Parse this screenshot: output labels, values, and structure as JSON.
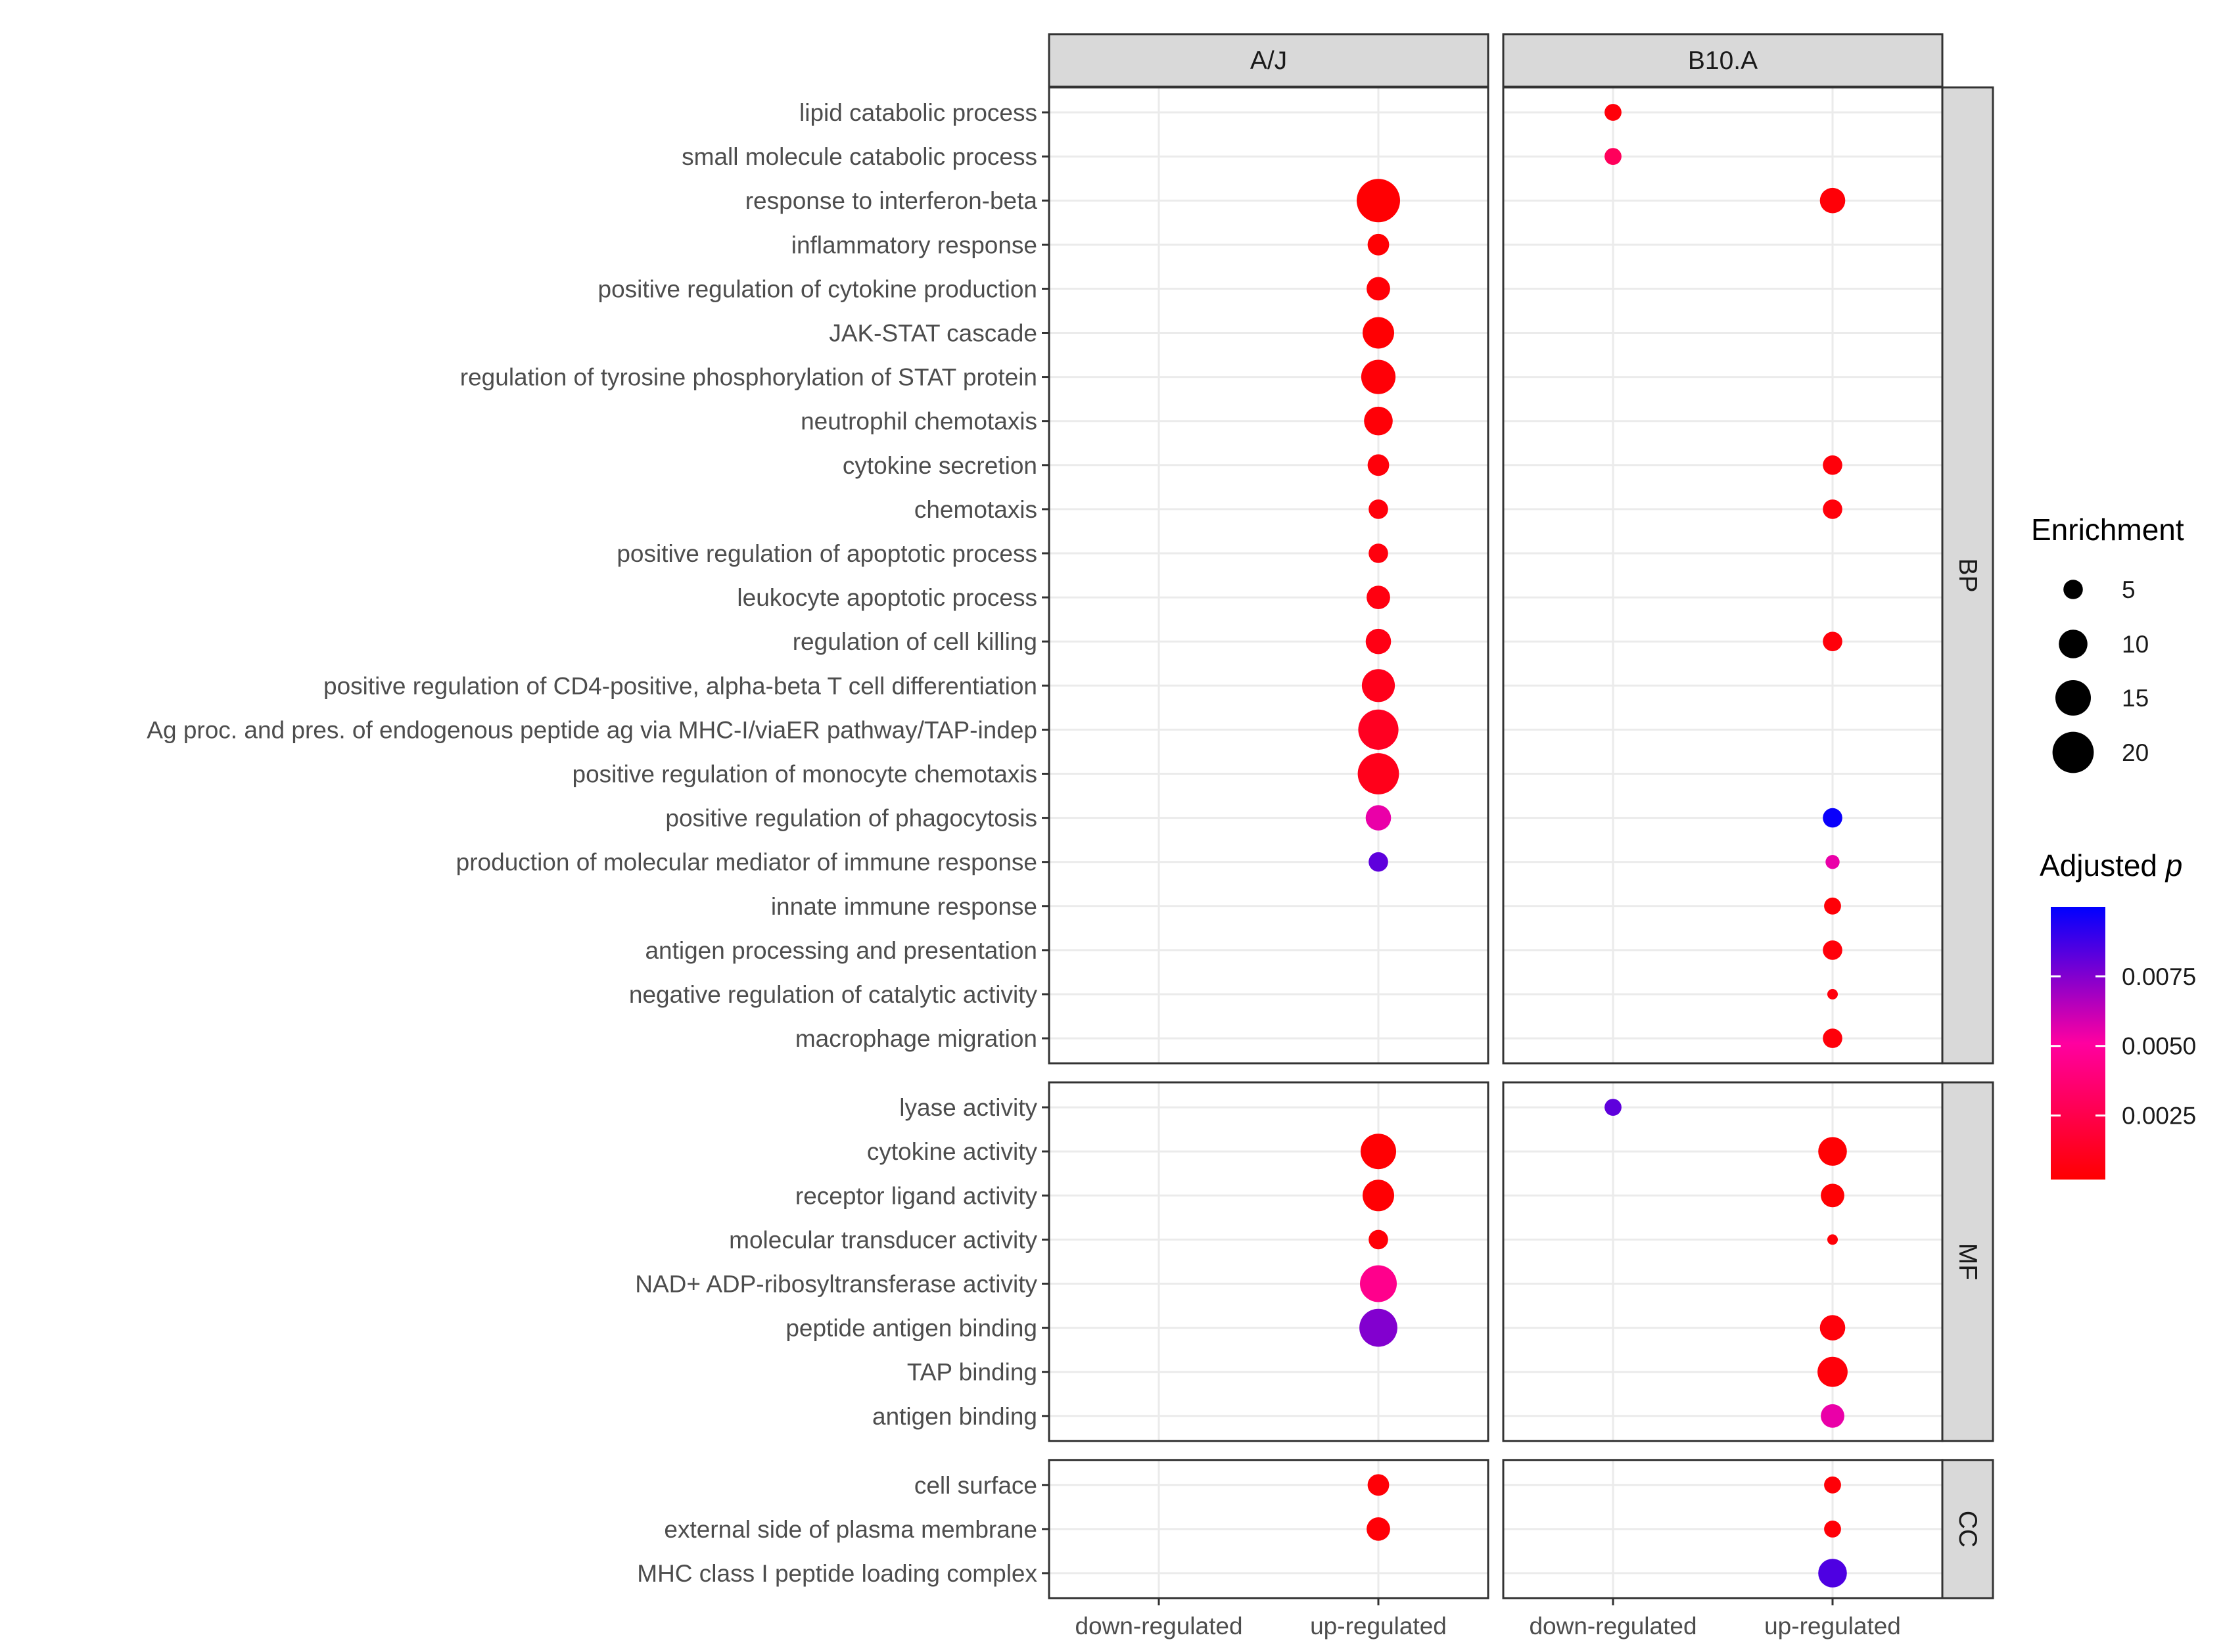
{
  "chart_data": {
    "type": "scatter",
    "columns": [
      "A/J",
      "B10.A"
    ],
    "x_categories": [
      "down-regulated",
      "up-regulated"
    ],
    "panels": [
      {
        "label": "BP",
        "terms": [
          "lipid catabolic process",
          "small molecule catabolic process",
          "response to interferon-beta",
          "inflammatory response",
          "positive regulation of cytokine production",
          "JAK-STAT cascade",
          "regulation of tyrosine phosphorylation of STAT protein",
          "neutrophil chemotaxis",
          "cytokine secretion",
          "chemotaxis",
          "positive regulation of apoptotic process",
          "leukocyte apoptotic process",
          "regulation of cell killing",
          "positive regulation of CD4-positive, alpha-beta T cell differentiation",
          "Ag proc. and pres. of endogenous peptide ag via MHC-I/viaER pathway/TAP-indep",
          "positive regulation of monocyte chemotaxis",
          "positive regulation of phagocytosis",
          "production of molecular mediator of immune response",
          "innate immune response",
          "antigen processing and presentation",
          "negative regulation of catalytic activity",
          "macrophage migration"
        ],
        "points": [
          {
            "column": "B10.A",
            "term": "lipid catabolic process",
            "x": "down-regulated",
            "enrichment": 4,
            "p_adj": 0.0005
          },
          {
            "column": "B10.A",
            "term": "small molecule catabolic process",
            "x": "down-regulated",
            "enrichment": 4,
            "p_adj": 0.003
          },
          {
            "column": "A/J",
            "term": "response to interferon-beta",
            "x": "up-regulated",
            "enrichment": 22,
            "p_adj": 0.0003
          },
          {
            "column": "B10.A",
            "term": "response to interferon-beta",
            "x": "up-regulated",
            "enrichment": 8,
            "p_adj": 0.0004
          },
          {
            "column": "A/J",
            "term": "inflammatory response",
            "x": "up-regulated",
            "enrichment": 6,
            "p_adj": 0.0003
          },
          {
            "column": "A/J",
            "term": "positive regulation of cytokine production",
            "x": "up-regulated",
            "enrichment": 7,
            "p_adj": 0.0004
          },
          {
            "column": "A/J",
            "term": "JAK-STAT cascade",
            "x": "up-regulated",
            "enrichment": 12,
            "p_adj": 0.0003
          },
          {
            "column": "A/J",
            "term": "regulation of tyrosine phosphorylation of STAT protein",
            "x": "up-regulated",
            "enrichment": 14,
            "p_adj": 0.0004
          },
          {
            "column": "A/J",
            "term": "neutrophil chemotaxis",
            "x": "up-regulated",
            "enrichment": 10,
            "p_adj": 0.0004
          },
          {
            "column": "A/J",
            "term": "cytokine secretion",
            "x": "up-regulated",
            "enrichment": 6,
            "p_adj": 0.0005
          },
          {
            "column": "B10.A",
            "term": "cytokine secretion",
            "x": "up-regulated",
            "enrichment": 5,
            "p_adj": 0.0005
          },
          {
            "column": "A/J",
            "term": "chemotaxis",
            "x": "up-regulated",
            "enrichment": 5,
            "p_adj": 0.0005
          },
          {
            "column": "B10.A",
            "term": "chemotaxis",
            "x": "up-regulated",
            "enrichment": 5,
            "p_adj": 0.0005
          },
          {
            "column": "A/J",
            "term": "positive regulation of apoptotic process",
            "x": "up-regulated",
            "enrichment": 5,
            "p_adj": 0.0006
          },
          {
            "column": "A/J",
            "term": "leukocyte apoptotic process",
            "x": "up-regulated",
            "enrichment": 7,
            "p_adj": 0.0007
          },
          {
            "column": "A/J",
            "term": "regulation of cell killing",
            "x": "up-regulated",
            "enrichment": 8,
            "p_adj": 0.0008
          },
          {
            "column": "B10.A",
            "term": "regulation of cell killing",
            "x": "up-regulated",
            "enrichment": 5,
            "p_adj": 0.0005
          },
          {
            "column": "A/J",
            "term": "positive regulation of CD4-positive, alpha-beta T cell differentiation",
            "x": "up-regulated",
            "enrichment": 13,
            "p_adj": 0.001
          },
          {
            "column": "A/J",
            "term": "Ag proc. and pres. of endogenous peptide ag via MHC-I/viaER pathway/TAP-indep",
            "x": "up-regulated",
            "enrichment": 19,
            "p_adj": 0.0012
          },
          {
            "column": "A/J",
            "term": "positive regulation of monocyte chemotaxis",
            "x": "up-regulated",
            "enrichment": 20,
            "p_adj": 0.001
          },
          {
            "column": "A/J",
            "term": "positive regulation of phagocytosis",
            "x": "up-regulated",
            "enrichment": 8,
            "p_adj": 0.0055
          },
          {
            "column": "B10.A",
            "term": "positive regulation of phagocytosis",
            "x": "up-regulated",
            "enrichment": 5,
            "p_adj": 0.0098
          },
          {
            "column": "A/J",
            "term": "production of molecular mediator of immune response",
            "x": "up-regulated",
            "enrichment": 5,
            "p_adj": 0.0082
          },
          {
            "column": "B10.A",
            "term": "production of molecular mediator of immune response",
            "x": "up-regulated",
            "enrichment": 3,
            "p_adj": 0.0055
          },
          {
            "column": "B10.A",
            "term": "innate immune response",
            "x": "up-regulated",
            "enrichment": 4,
            "p_adj": 0.0004
          },
          {
            "column": "B10.A",
            "term": "antigen processing and presentation",
            "x": "up-regulated",
            "enrichment": 5,
            "p_adj": 0.0005
          },
          {
            "column": "B10.A",
            "term": "negative regulation of catalytic activity",
            "x": "up-regulated",
            "enrichment": 2,
            "p_adj": 0.0006
          },
          {
            "column": "B10.A",
            "term": "macrophage migration",
            "x": "up-regulated",
            "enrichment": 5,
            "p_adj": 0.0005
          }
        ]
      },
      {
        "label": "MF",
        "terms": [
          "lyase activity",
          "cytokine activity",
          "receptor ligand activity",
          "molecular transducer activity",
          "NAD+ ADP-ribosyltransferase activity",
          "peptide antigen binding",
          "TAP binding",
          "antigen binding"
        ],
        "points": [
          {
            "column": "B10.A",
            "term": "lyase activity",
            "x": "down-regulated",
            "enrichment": 4,
            "p_adj": 0.0082
          },
          {
            "column": "A/J",
            "term": "cytokine activity",
            "x": "up-regulated",
            "enrichment": 15,
            "p_adj": 0.0003
          },
          {
            "column": "B10.A",
            "term": "cytokine activity",
            "x": "up-regulated",
            "enrichment": 10,
            "p_adj": 0.0003
          },
          {
            "column": "A/J",
            "term": "receptor ligand activity",
            "x": "up-regulated",
            "enrichment": 12,
            "p_adj": 0.0003
          },
          {
            "column": "B10.A",
            "term": "receptor ligand activity",
            "x": "up-regulated",
            "enrichment": 7,
            "p_adj": 0.0003
          },
          {
            "column": "A/J",
            "term": "molecular transducer activity",
            "x": "up-regulated",
            "enrichment": 5,
            "p_adj": 0.0004
          },
          {
            "column": "B10.A",
            "term": "molecular transducer activity",
            "x": "up-regulated",
            "enrichment": 2,
            "p_adj": 0.0004
          },
          {
            "column": "A/J",
            "term": "NAD+ ADP-ribosyltransferase activity",
            "x": "up-regulated",
            "enrichment": 16,
            "p_adj": 0.0045
          },
          {
            "column": "A/J",
            "term": "peptide antigen binding",
            "x": "up-regulated",
            "enrichment": 17,
            "p_adj": 0.0075
          },
          {
            "column": "B10.A",
            "term": "peptide antigen binding",
            "x": "up-regulated",
            "enrichment": 8,
            "p_adj": 0.0005
          },
          {
            "column": "B10.A",
            "term": "TAP binding",
            "x": "up-regulated",
            "enrichment": 11,
            "p_adj": 0.0005
          },
          {
            "column": "B10.A",
            "term": "antigen binding",
            "x": "up-regulated",
            "enrichment": 7,
            "p_adj": 0.0055
          }
        ]
      },
      {
        "label": "CC",
        "terms": [
          "cell surface",
          "external side of plasma membrane",
          "MHC class I peptide loading complex"
        ],
        "points": [
          {
            "column": "A/J",
            "term": "cell surface",
            "x": "up-regulated",
            "enrichment": 6,
            "p_adj": 0.0004
          },
          {
            "column": "B10.A",
            "term": "cell surface",
            "x": "up-regulated",
            "enrichment": 4,
            "p_adj": 0.0004
          },
          {
            "column": "A/J",
            "term": "external side of plasma membrane",
            "x": "up-regulated",
            "enrichment": 7,
            "p_adj": 0.0004
          },
          {
            "column": "B10.A",
            "term": "external side of plasma membrane",
            "x": "up-regulated",
            "enrichment": 4,
            "p_adj": 0.0004
          },
          {
            "column": "B10.A",
            "term": "MHC class I peptide loading complex",
            "x": "up-regulated",
            "enrichment": 10,
            "p_adj": 0.0085
          }
        ]
      }
    ],
    "size_legend": {
      "title": "Enrichment",
      "values": [
        5,
        10,
        15,
        20
      ],
      "range": [
        2,
        22
      ]
    },
    "color_legend": {
      "title": "Adjusted",
      "title_italic": "p",
      "ticks": [
        0.0025,
        0.005,
        0.0075
      ],
      "tick_labels": [
        "0.0025",
        "0.0050",
        "0.0075"
      ],
      "range": [
        0.0002,
        0.01
      ],
      "low_color": "#ff0000",
      "mid_color": "#ff00a0",
      "high_color": "#0000ff"
    },
    "colors": {
      "panel_bg": "#ffffff",
      "grid": "#ebebeb",
      "strip_bg": "#d9d9d9",
      "border": "#333333"
    }
  }
}
